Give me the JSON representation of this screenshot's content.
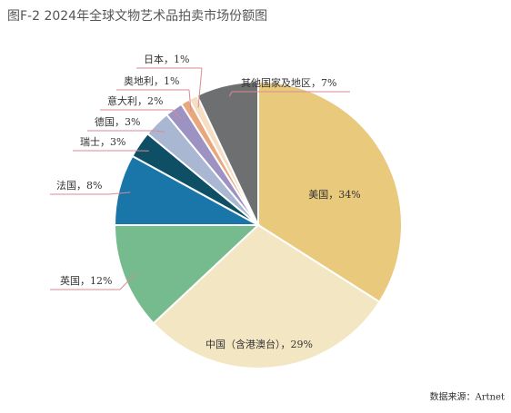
{
  "chart_data": {
    "type": "pie",
    "title": "图F-2  2024年全球文物艺术品拍卖市场份额图",
    "source": "数据来源：Artnet",
    "label_separator": "，",
    "categories": [
      "美国",
      "中国（含港澳台）",
      "英国",
      "法国",
      "瑞士",
      "德国",
      "意大利",
      "奥地利",
      "日本",
      "其他国家及地区"
    ],
    "values": [
      34,
      29,
      12,
      8,
      3,
      3,
      2,
      1,
      1,
      7
    ],
    "value_labels": [
      "34%",
      "29%",
      "12%",
      "8%",
      "3%",
      "3%",
      "2%",
      "1%",
      "1%",
      "7%"
    ],
    "colors": [
      "#e9c97c",
      "#f3e6c3",
      "#76bb8d",
      "#1a75a8",
      "#0f4f66",
      "#a9b7d2",
      "#9d93c3",
      "#e9a77e",
      "#f7ddc2",
      "#6e6f71"
    ]
  }
}
